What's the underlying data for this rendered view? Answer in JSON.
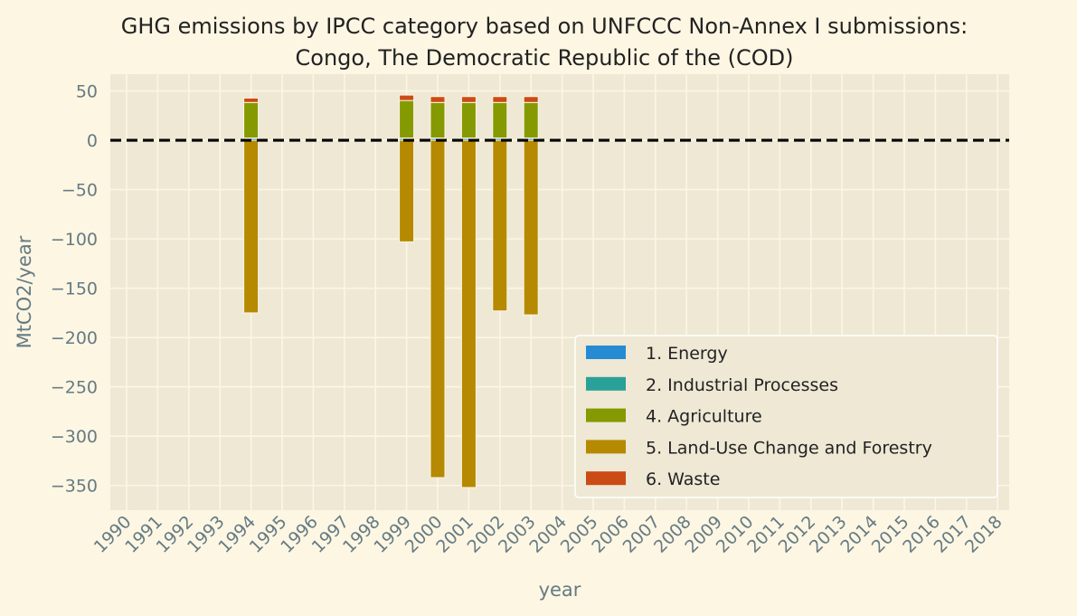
{
  "chart_data": {
    "type": "bar",
    "stacked": true,
    "title_line1": "GHG emissions by IPCC category based on UNFCCC Non-Annex I submissions:",
    "title_line2": "Congo, The Democratic Republic of the (COD)",
    "xlabel": "year",
    "ylabel": "MtCO2/year",
    "ylim": [
      -375,
      67
    ],
    "yticks": [
      50,
      0,
      -50,
      -100,
      -150,
      -200,
      -250,
      -300,
      -350
    ],
    "grid": true,
    "zero_line": {
      "value": 0,
      "style": "dashed",
      "color": "#000000"
    },
    "legend_position": "lower-right",
    "categories": [
      "1990",
      "1991",
      "1992",
      "1993",
      "1994",
      "1995",
      "1996",
      "1997",
      "1998",
      "1999",
      "2000",
      "2001",
      "2002",
      "2003",
      "2004",
      "2005",
      "2006",
      "2007",
      "2008",
      "2009",
      "2010",
      "2011",
      "2012",
      "2013",
      "2014",
      "2015",
      "2016",
      "2017",
      "2018"
    ],
    "series": [
      {
        "name": "1. Energy",
        "color": "#268bd2",
        "values": [
          null,
          null,
          null,
          null,
          2.0,
          null,
          null,
          null,
          null,
          2.0,
          2.0,
          2.0,
          2.0,
          2.0,
          null,
          null,
          null,
          null,
          null,
          null,
          null,
          null,
          null,
          null,
          null,
          null,
          null,
          null,
          null
        ]
      },
      {
        "name": "2. Industrial Processes",
        "color": "#2aa198",
        "values": [
          null,
          null,
          null,
          null,
          0.3,
          null,
          null,
          null,
          null,
          0.3,
          0.3,
          0.3,
          0.3,
          0.3,
          null,
          null,
          null,
          null,
          null,
          null,
          null,
          null,
          null,
          null,
          null,
          null,
          null,
          null,
          null
        ]
      },
      {
        "name": "4. Agriculture",
        "color": "#859900",
        "values": [
          null,
          null,
          null,
          null,
          36,
          null,
          null,
          null,
          null,
          38,
          36,
          36,
          36,
          36,
          null,
          null,
          null,
          null,
          null,
          null,
          null,
          null,
          null,
          null,
          null,
          null,
          null,
          null,
          null
        ]
      },
      {
        "name": "5. Land-Use Change and Forestry",
        "color": "#b58900",
        "values": [
          null,
          null,
          null,
          null,
          -175,
          null,
          null,
          null,
          null,
          -103,
          -342,
          -352,
          -173,
          -177,
          null,
          null,
          null,
          null,
          null,
          null,
          null,
          null,
          null,
          null,
          null,
          null,
          null,
          null,
          null
        ]
      },
      {
        "name": "6. Waste",
        "color": "#cb4b16",
        "values": [
          null,
          null,
          null,
          null,
          4.5,
          null,
          null,
          null,
          null,
          5.5,
          6.0,
          6.0,
          6.0,
          6.0,
          null,
          null,
          null,
          null,
          null,
          null,
          null,
          null,
          null,
          null,
          null,
          null,
          null,
          null,
          null
        ]
      }
    ]
  }
}
